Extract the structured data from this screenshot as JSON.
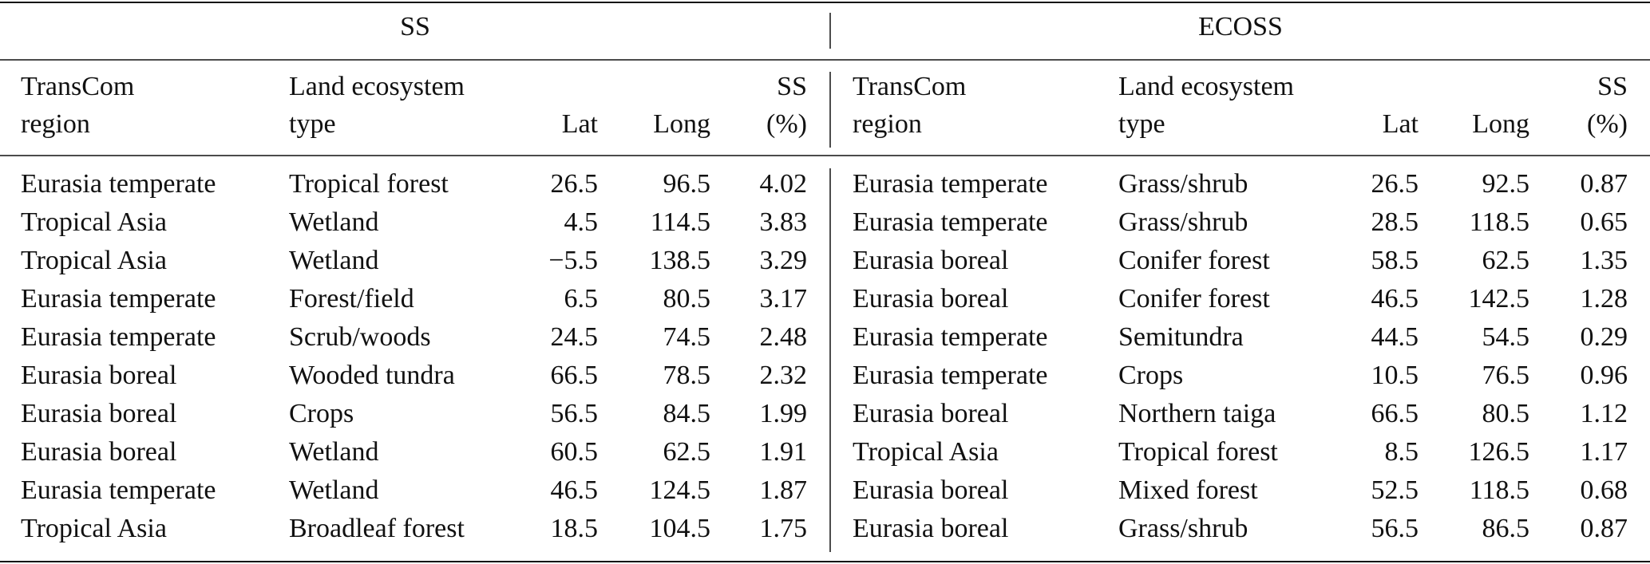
{
  "table": {
    "groups": [
      "SS",
      "ECOSS"
    ],
    "headers": [
      [
        [
          "TransCom",
          "region"
        ],
        [
          "Land ecosystem",
          "type"
        ],
        [
          "Lat"
        ],
        [
          "Long"
        ],
        [
          "SS",
          "(%)"
        ]
      ],
      [
        [
          "TransCom",
          "region"
        ],
        [
          "Land ecosystem",
          "type"
        ],
        [
          "Lat"
        ],
        [
          "Long"
        ],
        [
          "SS",
          "(%)"
        ]
      ]
    ],
    "rows": [
      [
        "Eurasia temperate",
        "Tropical forest",
        "26.5",
        "96.5",
        "4.02",
        "Eurasia temperate",
        "Grass/shrub",
        "26.5",
        "92.5",
        "0.87"
      ],
      [
        "Tropical Asia",
        "Wetland",
        "4.5",
        "114.5",
        "3.83",
        "Eurasia temperate",
        "Grass/shrub",
        "28.5",
        "118.5",
        "0.65"
      ],
      [
        "Tropical Asia",
        "Wetland",
        "−5.5",
        "138.5",
        "3.29",
        "Eurasia boreal",
        "Conifer forest",
        "58.5",
        "62.5",
        "1.35"
      ],
      [
        "Eurasia temperate",
        "Forest/field",
        "6.5",
        "80.5",
        "3.17",
        "Eurasia boreal",
        "Conifer forest",
        "46.5",
        "142.5",
        "1.28"
      ],
      [
        "Eurasia temperate",
        "Scrub/woods",
        "24.5",
        "74.5",
        "2.48",
        "Eurasia temperate",
        "Semitundra",
        "44.5",
        "54.5",
        "0.29"
      ],
      [
        "Eurasia boreal",
        "Wooded tundra",
        "66.5",
        "78.5",
        "2.32",
        "Eurasia temperate",
        "Crops",
        "10.5",
        "76.5",
        "0.96"
      ],
      [
        "Eurasia boreal",
        "Crops",
        "56.5",
        "84.5",
        "1.99",
        "Eurasia boreal",
        "Northern taiga",
        "66.5",
        "80.5",
        "1.12"
      ],
      [
        "Eurasia boreal",
        "Wetland",
        "60.5",
        "62.5",
        "1.91",
        "Tropical Asia",
        "Tropical forest",
        "8.5",
        "126.5",
        "1.17"
      ],
      [
        "Eurasia temperate",
        "Wetland",
        "46.5",
        "124.5",
        "1.87",
        "Eurasia boreal",
        "Mixed forest",
        "52.5",
        "118.5",
        "0.68"
      ],
      [
        "Tropical Asia",
        "Broadleaf forest",
        "18.5",
        "104.5",
        "1.75",
        "Eurasia boreal",
        "Grass/shrub",
        "56.5",
        "86.5",
        "0.87"
      ]
    ]
  }
}
